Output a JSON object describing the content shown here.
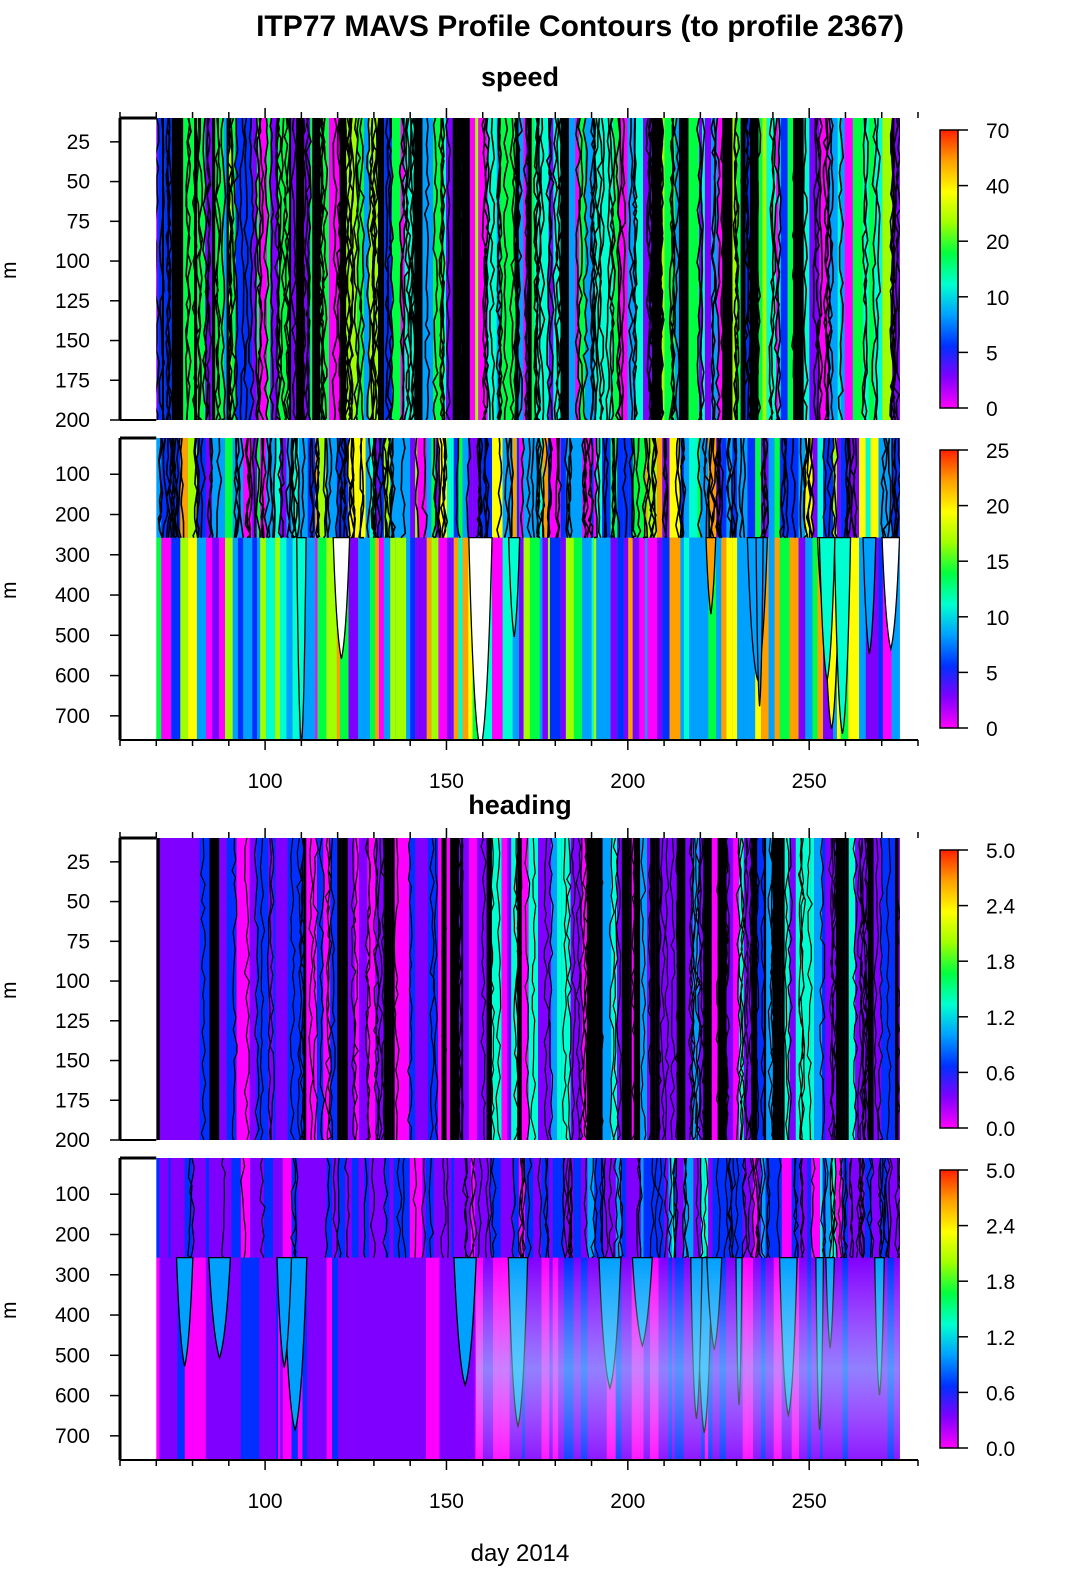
{
  "title": "ITP77 MAVS Profile Contours (to profile 2367)",
  "xlabel": "day 2014",
  "colors": {
    "colormap": [
      "#ff00ff",
      "#8000ff",
      "#0030ff",
      "#00a0ff",
      "#00ffd0",
      "#00ff40",
      "#a0ff00",
      "#ffff00",
      "#ffa000",
      "#ff2000"
    ],
    "contour": "#000000",
    "frame": "#000000",
    "background": "#ffffff"
  },
  "chart_data": [
    {
      "type": "heatmap",
      "panel": "speed-upper",
      "section_title": "speed",
      "xlim": [
        60,
        280
      ],
      "data_x_range": [
        70,
        275
      ],
      "ylim": [
        10,
        200
      ],
      "y_reversed": true,
      "yticks": [
        "25",
        "50",
        "75",
        "100",
        "125",
        "150",
        "175",
        "200"
      ],
      "xticks": [],
      "ylabel": "m",
      "colorbar_ticks": [
        "70",
        "40",
        "20",
        "10",
        "5",
        "0"
      ]
    },
    {
      "type": "heatmap",
      "panel": "speed-lower",
      "xlim": [
        60,
        280
      ],
      "data_x_range": [
        70,
        275
      ],
      "ylim": [
        10,
        760
      ],
      "y_reversed": true,
      "yticks": [
        "100",
        "200",
        "300",
        "400",
        "500",
        "600",
        "700"
      ],
      "xticks": [
        "100",
        "150",
        "200",
        "250"
      ],
      "ylabel": "m",
      "colorbar_ticks": [
        "25",
        "20",
        "15",
        "10",
        "5",
        "0"
      ]
    },
    {
      "type": "heatmap",
      "panel": "heading-upper",
      "section_title": "heading",
      "xlim": [
        60,
        280
      ],
      "data_x_range": [
        70,
        275
      ],
      "ylim": [
        10,
        200
      ],
      "y_reversed": true,
      "yticks": [
        "25",
        "50",
        "75",
        "100",
        "125",
        "150",
        "175",
        "200"
      ],
      "xticks": [],
      "ylabel": "m",
      "colorbar_ticks": [
        "5.0",
        "2.4",
        "1.8",
        "1.2",
        "0.6",
        "0.0"
      ]
    },
    {
      "type": "heatmap",
      "panel": "heading-lower",
      "xlim": [
        60,
        280
      ],
      "data_x_range": [
        70,
        275
      ],
      "ylim": [
        10,
        760
      ],
      "y_reversed": true,
      "yticks": [
        "100",
        "200",
        "300",
        "400",
        "500",
        "600",
        "700"
      ],
      "xticks": [
        "100",
        "150",
        "200",
        "250"
      ],
      "ylabel": "m",
      "colorbar_ticks": [
        "5.0",
        "2.4",
        "1.8",
        "1.2",
        "0.6",
        "0.0"
      ]
    }
  ]
}
